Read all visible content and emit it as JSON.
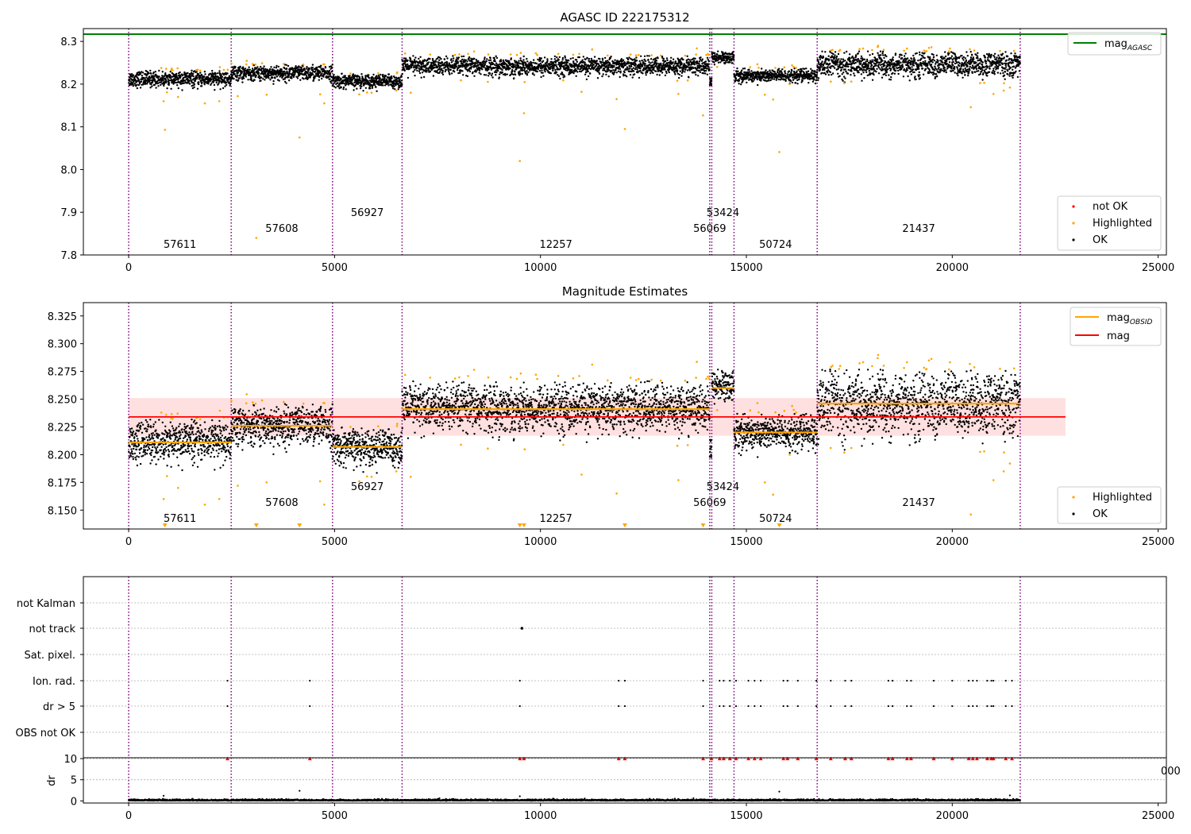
{
  "colors": {
    "ok": "#000000",
    "highlighted": "#ffa500",
    "not_ok": "#ff0000",
    "agasc_line": "#008000",
    "mag_line": "#ff0000",
    "mag_band": "#ffcccc",
    "obsid_line": "#ffa500",
    "boundary": "#800080"
  },
  "chart_data": [
    {
      "type": "scatter",
      "title": "AGASC ID 222175312",
      "xlim": [
        -1100,
        25200
      ],
      "ylim": [
        7.8,
        8.33
      ],
      "xticks": [
        0,
        5000,
        10000,
        15000,
        20000,
        25000
      ],
      "yticks": [
        7.8,
        7.9,
        8.0,
        8.1,
        8.2,
        8.3
      ],
      "xtick_labels": [
        "0",
        "5000",
        "10000",
        "15000",
        "20000",
        "25000"
      ],
      "ytick_labels": [
        "7.8",
        "7.9",
        "8.0",
        "8.1",
        "8.2",
        "8.3"
      ],
      "mag_agasc": 8.317,
      "obsid_boundaries": [
        0,
        2490,
        4950,
        6640,
        14110,
        14160,
        14700,
        16720,
        21650
      ],
      "observations": [
        {
          "obsid": "57611",
          "x_start": 0,
          "x_end": 2490,
          "mean": 8.212,
          "spread": 0.009
        },
        {
          "obsid": "57608",
          "x_start": 2490,
          "x_end": 4950,
          "mean": 8.226,
          "spread": 0.009
        },
        {
          "obsid": "56927",
          "x_start": 4950,
          "x_end": 6640,
          "mean": 8.207,
          "spread": 0.008
        },
        {
          "obsid": "12257",
          "x_start": 6640,
          "x_end": 14110,
          "mean": 8.242,
          "spread": 0.011
        },
        {
          "obsid": "56069",
          "x_start": 14110,
          "x_end": 14160,
          "mean": 8.205,
          "spread": 0.01
        },
        {
          "obsid": "53424",
          "x_start": 14160,
          "x_end": 14700,
          "mean": 8.262,
          "spread": 0.007
        },
        {
          "obsid": "50724",
          "x_start": 14700,
          "x_end": 16720,
          "mean": 8.22,
          "spread": 0.008
        },
        {
          "obsid": "21437",
          "x_start": 16720,
          "x_end": 21650,
          "mean": 8.246,
          "spread": 0.014
        }
      ],
      "highlighted_outliers": [
        {
          "x": 850,
          "y": 8.16
        },
        {
          "x": 880,
          "y": 8.093
        },
        {
          "x": 1200,
          "y": 8.17
        },
        {
          "x": 1850,
          "y": 8.155
        },
        {
          "x": 2200,
          "y": 8.16
        },
        {
          "x": 3100,
          "y": 7.84
        },
        {
          "x": 4150,
          "y": 8.075
        },
        {
          "x": 4750,
          "y": 8.155
        },
        {
          "x": 4650,
          "y": 8.176
        },
        {
          "x": 3350,
          "y": 8.175
        },
        {
          "x": 2650,
          "y": 8.172
        },
        {
          "x": 5600,
          "y": 8.176
        },
        {
          "x": 5900,
          "y": 8.18
        },
        {
          "x": 6500,
          "y": 8.185
        },
        {
          "x": 6850,
          "y": 8.18
        },
        {
          "x": 9500,
          "y": 8.02
        },
        {
          "x": 9600,
          "y": 8.132
        },
        {
          "x": 11000,
          "y": 8.182
        },
        {
          "x": 11850,
          "y": 8.165
        },
        {
          "x": 12050,
          "y": 8.095
        },
        {
          "x": 13350,
          "y": 8.177
        },
        {
          "x": 13950,
          "y": 8.127
        },
        {
          "x": 15450,
          "y": 8.175
        },
        {
          "x": 15650,
          "y": 8.164
        },
        {
          "x": 15800,
          "y": 8.041
        },
        {
          "x": 16050,
          "y": 8.2
        },
        {
          "x": 17050,
          "y": 8.206
        },
        {
          "x": 17550,
          "y": 8.206
        },
        {
          "x": 20450,
          "y": 8.146
        },
        {
          "x": 21000,
          "y": 8.177
        },
        {
          "x": 21250,
          "y": 8.185
        },
        {
          "x": 21400,
          "y": 8.192
        }
      ],
      "legends": [
        {
          "entries": [
            {
              "label": "mag",
              "sub": "AGASC"
            }
          ],
          "loc": "upper right"
        },
        {
          "entries": [
            {
              "label": "not OK"
            },
            {
              "label": "Highlighted"
            },
            {
              "label": "OK"
            }
          ],
          "loc": "lower right"
        }
      ]
    },
    {
      "type": "scatter",
      "title": "Magnitude Estimates",
      "xlim": [
        -1100,
        25200
      ],
      "ylim": [
        8.133,
        8.337
      ],
      "xticks": [
        0,
        5000,
        10000,
        15000,
        20000,
        25000
      ],
      "yticks": [
        8.15,
        8.175,
        8.2,
        8.225,
        8.25,
        8.275,
        8.3,
        8.325
      ],
      "xtick_labels": [
        "0",
        "5000",
        "10000",
        "15000",
        "20000",
        "25000"
      ],
      "ytick_labels": [
        "8.150",
        "8.175",
        "8.200",
        "8.225",
        "8.250",
        "8.275",
        "8.300",
        "8.325"
      ],
      "mag": 8.234,
      "mag_band": [
        8.217,
        8.251
      ],
      "mag_line_xrange": [
        0,
        22750
      ],
      "obsid_means": [
        {
          "obsid": "57611",
          "x_start": 0,
          "x_end": 2490,
          "mag_obsid": 8.211
        },
        {
          "obsid": "57608",
          "x_start": 2490,
          "x_end": 4950,
          "mag_obsid": 8.226
        },
        {
          "obsid": "56927",
          "x_start": 4950,
          "x_end": 6640,
          "mag_obsid": 8.207
        },
        {
          "obsid": "12257",
          "x_start": 6640,
          "x_end": 14110,
          "mag_obsid": 8.241
        },
        {
          "obsid": "53424",
          "x_start": 14160,
          "x_end": 14700,
          "mag_obsid": 8.26
        },
        {
          "obsid": "50724",
          "x_start": 14700,
          "x_end": 16720,
          "mag_obsid": 8.22
        },
        {
          "obsid": "21437",
          "x_start": 16720,
          "x_end": 21650,
          "mag_obsid": 8.246
        }
      ],
      "clipped_markers_x": [
        880,
        3100,
        4150,
        9500,
        9600,
        12050,
        13950,
        15800
      ],
      "legends": [
        {
          "entries": [
            {
              "label": "mag",
              "sub": "OBSID"
            },
            {
              "label": "mag"
            }
          ],
          "loc": "upper right"
        },
        {
          "entries": [
            {
              "label": "Highlighted"
            },
            {
              "label": "OK"
            }
          ],
          "loc": "lower right"
        }
      ]
    },
    {
      "type": "scatter",
      "title": "",
      "xlim": [
        -1100,
        25200
      ],
      "flag_categories": [
        "not Kalman",
        "not track",
        "Sat. pixel.",
        "Ion. rad.",
        "dr > 5",
        "OBS not OK"
      ],
      "flag_points": {
        "not track": [
          9550
        ],
        "Ion. rad.": [
          2400,
          4400,
          9500,
          11900,
          12050,
          13950,
          14350,
          14450,
          14600,
          14750,
          15050,
          15200,
          15350,
          15900,
          16000,
          16250,
          16700,
          17050,
          17400,
          17550,
          18450,
          18550,
          18900,
          19000,
          19550,
          20000,
          20400,
          20500,
          20600,
          20850,
          20950,
          21000,
          21300,
          21450
        ],
        "dr > 5": [
          2400,
          4400,
          9500,
          11900,
          12050,
          13950,
          14350,
          14450,
          14600,
          14750,
          15050,
          15200,
          15350,
          15900,
          16000,
          16250,
          16700,
          17050,
          17400,
          17550,
          18450,
          18550,
          18900,
          19000,
          19550,
          20000,
          20400,
          20500,
          20600,
          20850,
          20950,
          21000,
          21300,
          21450
        ]
      }
    },
    {
      "type": "scatter",
      "title": "",
      "xlim": [
        -1100,
        25200
      ],
      "ylim": [
        -0.5,
        10.2
      ],
      "ylabel": "dr",
      "xticks": [
        0,
        5000,
        10000,
        15000,
        20000,
        25000
      ],
      "yticks": [
        0,
        5,
        10
      ],
      "xtick_labels": [
        "0",
        "5000",
        "10000",
        "15000",
        "20000",
        "25000"
      ],
      "ytick_labels": [
        "0",
        "5",
        "10"
      ],
      "clipped_dr_x": [
        2400,
        4400,
        9500,
        9600,
        11900,
        12050,
        13950,
        14150,
        14350,
        14450,
        14600,
        14750,
        15050,
        15200,
        15350,
        15900,
        16000,
        16250,
        16700,
        17050,
        17400,
        17550,
        18450,
        18550,
        18900,
        19000,
        19550,
        20000,
        20400,
        20500,
        20600,
        20850,
        20950,
        21000,
        21300,
        21450
      ],
      "dr_outliers": [
        {
          "x": 850,
          "y": 1.2
        },
        {
          "x": 4150,
          "y": 2.4
        },
        {
          "x": 9500,
          "y": 1.1
        },
        {
          "x": 15800,
          "y": 2.2
        },
        {
          "x": 21400,
          "y": 1.3
        }
      ],
      "stray_tick_label": "000"
    }
  ]
}
